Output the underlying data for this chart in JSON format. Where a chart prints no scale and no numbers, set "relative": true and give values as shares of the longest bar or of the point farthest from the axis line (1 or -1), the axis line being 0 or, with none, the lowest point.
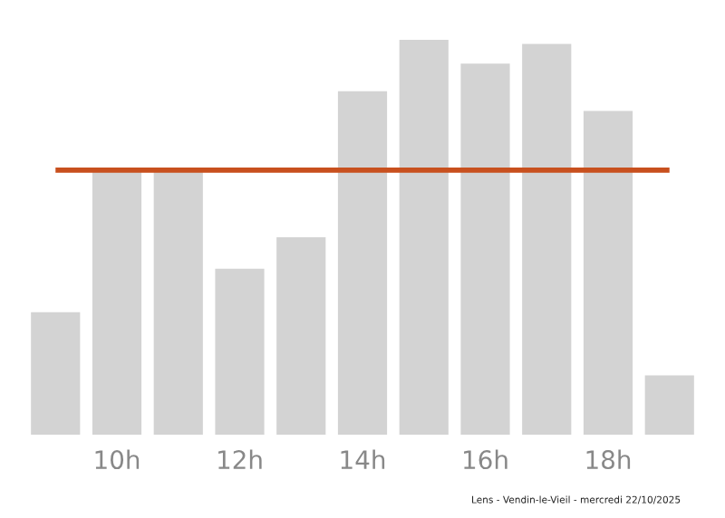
{
  "chart_data": {
    "type": "bar",
    "relative": true,
    "categories": [
      null,
      "10h",
      null,
      "12h",
      null,
      "14h",
      null,
      "16h",
      null,
      "18h",
      null
    ],
    "values": [
      0.31,
      0.67,
      0.67,
      0.42,
      0.5,
      0.87,
      1,
      0.94,
      0.99,
      0.82,
      0.15
    ],
    "color": "#d3d3d3",
    "ref_lines": [
      {
        "axis": "y",
        "value": 0.67,
        "label": null,
        "color": "#c8501e"
      }
    ],
    "annotations": [
      "Lens - Vendin-le-Vieil - mercredi 22/10/2025"
    ],
    "grid": false,
    "legend": false
  }
}
